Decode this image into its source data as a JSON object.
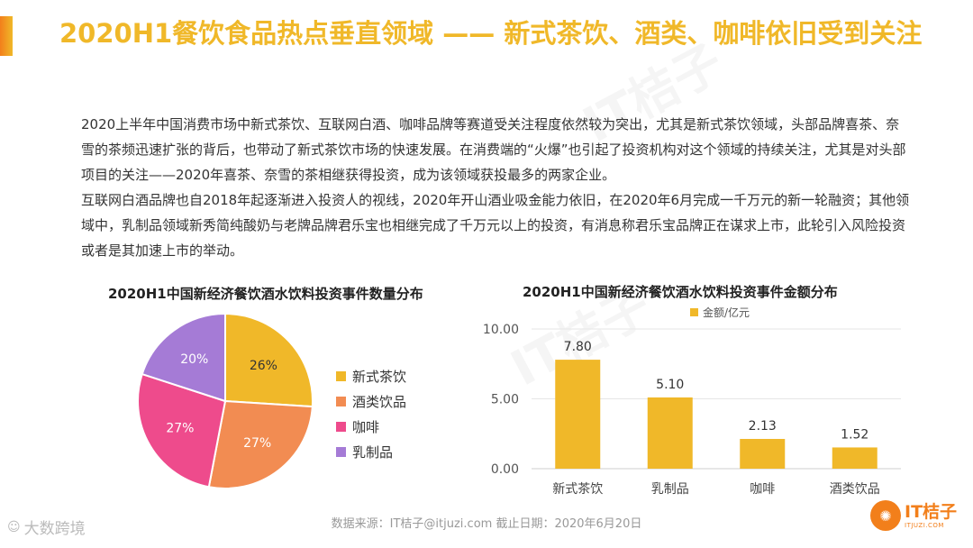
{
  "header": {
    "title": "2020H1餐饮食品热点垂直领域 —— 新式茶饮、酒类、咖啡依旧受到关注"
  },
  "body": {
    "paragraph1": "2020上半年中国消费市场中新式茶饮、互联网白酒、咖啡品牌等赛道受关注程度依然较为突出，尤其是新式茶饮领域，头部品牌喜茶、奈雪的茶频迅速扩张的背后，也带动了新式茶饮市场的快速发展。在消费端的“火爆”也引起了投资机构对这个领域的持续关注，尤其是对头部项目的关注——2020年喜茶、奈雪的茶相继获得投资，成为该领域获投最多的两家企业。",
    "paragraph2": "互联网白酒品牌也自2018年起逐渐进入投资人的视线，2020年开山酒业吸金能力依旧，在2020年6月完成一千万元的新一轮融资；其他领域中，乳制品领域新秀简纯酸奶与老牌品牌君乐宝也相继完成了千万元以上的投资，有消息称君乐宝品牌正在谋求上市，此轮引入风险投资或者是其加速上市的举动。"
  },
  "footer": {
    "source": "数据来源：IT桔子@itjuzi.com  截止日期：2020年6月20日",
    "watermark_left": "大数跨境",
    "logo_name": "IT桔子",
    "logo_url": "ITJUZI.COM",
    "bg_watermark": "IT桔子"
  },
  "colors": {
    "accent": "#f0b829",
    "accent_orange": "#f27f1b",
    "bar": "#f0b829",
    "pie": [
      "#f0b829",
      "#f28c52",
      "#ee4b8c",
      "#a57bd6"
    ]
  },
  "chart_data": [
    {
      "type": "pie",
      "title": "2020H1中国新经济餐饮酒水饮料投资事件数量分布",
      "categories": [
        "新式茶饮",
        "酒类饮品",
        "咖啡",
        "乳制品"
      ],
      "values": [
        26,
        27,
        27,
        20
      ],
      "labels": [
        "26%",
        "27%",
        "27%",
        "20%"
      ],
      "legend": "right"
    },
    {
      "type": "bar",
      "title": "2020H1中国新经济餐饮酒水饮料投资事件金额分布",
      "categories": [
        "新式茶饮",
        "乳制品",
        "咖啡",
        "酒类饮品"
      ],
      "series": [
        {
          "name": "金额/亿元",
          "values": [
            7.8,
            5.1,
            2.13,
            1.52
          ]
        }
      ],
      "value_labels": [
        "7.80",
        "5.10",
        "2.13",
        "1.52"
      ],
      "ylim": [
        0,
        10
      ],
      "yticks": [
        0,
        5,
        10
      ],
      "ytick_labels": [
        "0.00",
        "5.00",
        "10.00"
      ],
      "grid": true,
      "legend": "top"
    }
  ]
}
